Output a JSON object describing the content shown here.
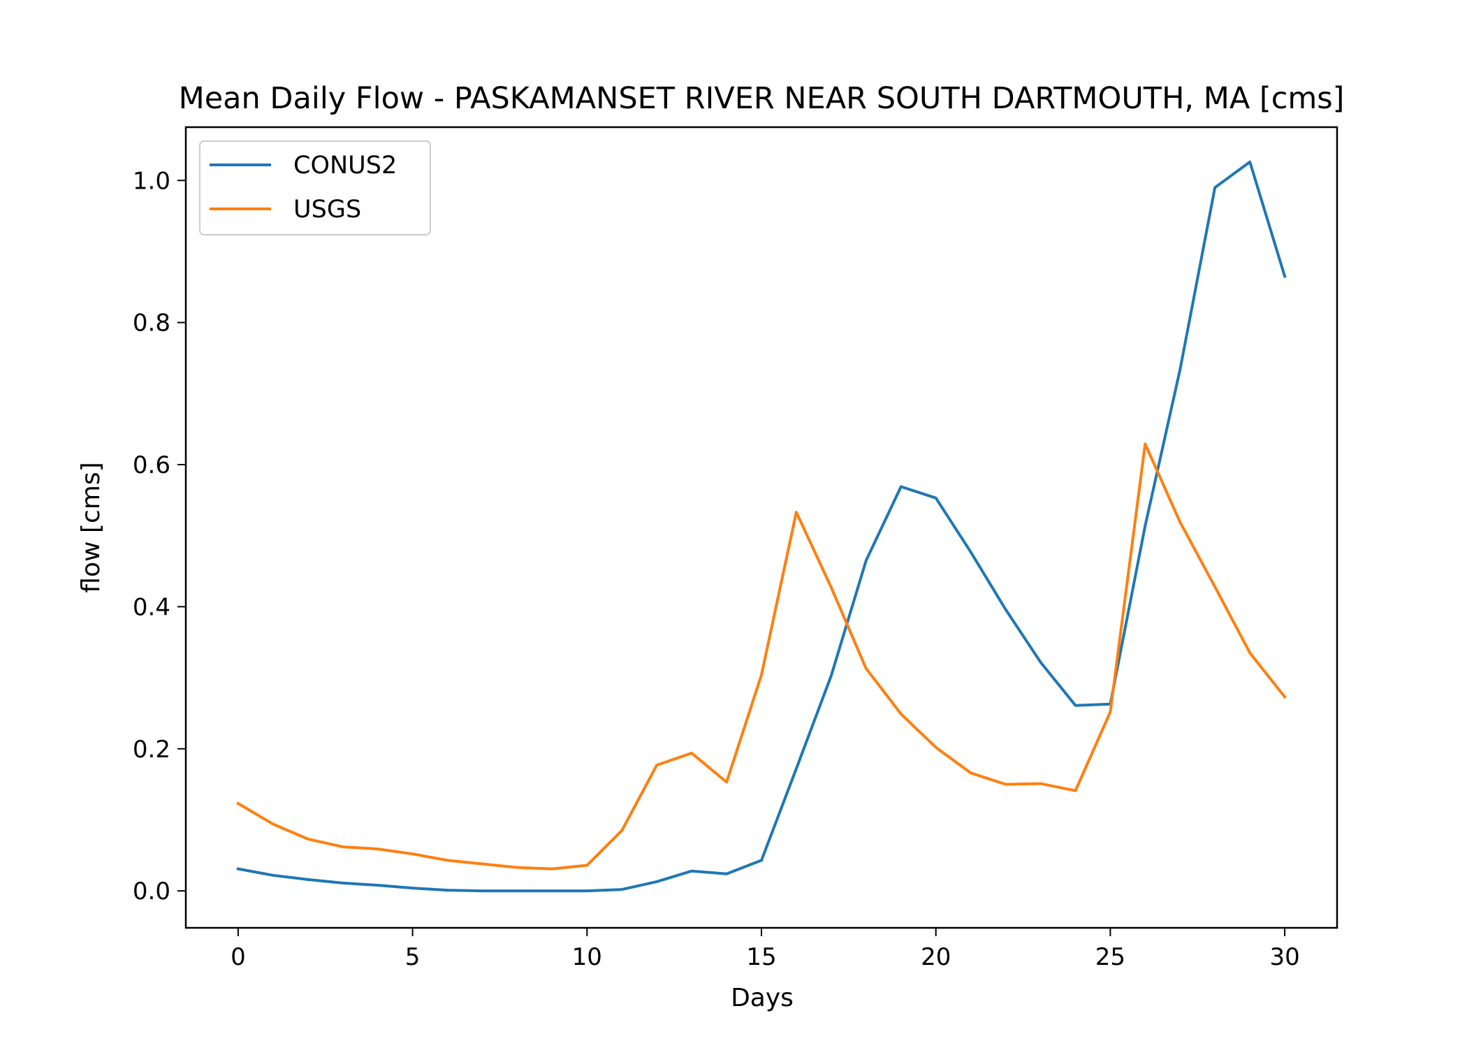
{
  "chart_data": {
    "type": "line",
    "title": "Mean Daily Flow - PASKAMANSET RIVER NEAR SOUTH DARTMOUTH, MA [cms]",
    "xlabel": "Days",
    "ylabel": "flow [cms]",
    "xlim": [
      -1.5,
      31.5
    ],
    "ylim": [
      -0.052,
      1.075
    ],
    "xticks": [
      0,
      5,
      10,
      15,
      20,
      25,
      30
    ],
    "xtick_labels": [
      "0",
      "5",
      "10",
      "15",
      "20",
      "25",
      "30"
    ],
    "yticks": [
      0.0,
      0.2,
      0.4,
      0.6,
      0.8,
      1.0
    ],
    "ytick_labels": [
      "0.0",
      "0.2",
      "0.4",
      "0.6",
      "0.8",
      "1.0"
    ],
    "grid": false,
    "legend_position": "upper-left",
    "x": [
      0,
      1,
      2,
      3,
      4,
      5,
      6,
      7,
      8,
      9,
      10,
      11,
      12,
      13,
      14,
      15,
      16,
      17,
      18,
      19,
      20,
      21,
      22,
      23,
      24,
      25,
      26,
      27,
      28,
      29,
      30
    ],
    "series": [
      {
        "name": "CONUS2",
        "color": "#1f77b4",
        "values": [
          0.031,
          0.022,
          0.016,
          0.011,
          0.008,
          0.004,
          0.001,
          0.0,
          0.0,
          0.0,
          0.0,
          0.002,
          0.013,
          0.028,
          0.024,
          0.043,
          0.172,
          0.303,
          0.465,
          0.569,
          0.553,
          0.477,
          0.396,
          0.322,
          0.261,
          0.263,
          0.514,
          0.734,
          0.99,
          1.026,
          0.865
        ]
      },
      {
        "name": "USGS",
        "color": "#ff7f0e",
        "values": [
          0.123,
          0.094,
          0.073,
          0.062,
          0.059,
          0.052,
          0.043,
          0.038,
          0.033,
          0.031,
          0.036,
          0.085,
          0.177,
          0.194,
          0.153,
          0.304,
          0.533,
          0.427,
          0.313,
          0.249,
          0.202,
          0.166,
          0.15,
          0.151,
          0.141,
          0.252,
          0.629,
          0.519,
          0.428,
          0.335,
          0.273
        ]
      }
    ]
  }
}
